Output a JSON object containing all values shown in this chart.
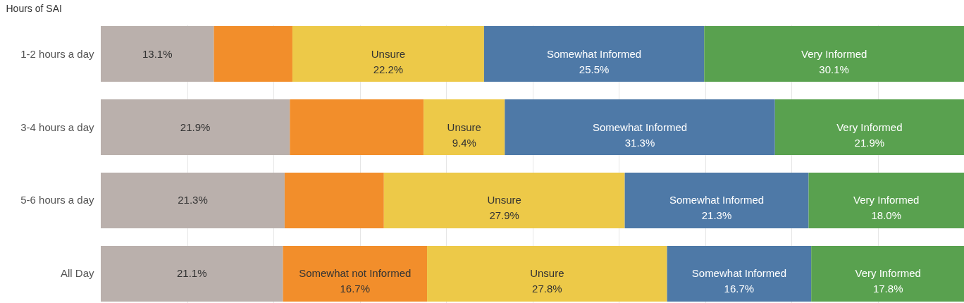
{
  "chart_data": {
    "type": "bar",
    "orientation": "horizontal",
    "stacked": true,
    "ylabel": "Hours of SAI",
    "categories": [
      "1-2 hours a day",
      "3-4 hours a day",
      "5-6 hours a day",
      "All Day"
    ],
    "series": [
      {
        "color": "#bab0ac",
        "values": [
          13.1,
          21.9,
          21.3,
          21.1
        ],
        "value_labels": [
          "13.1%",
          "21.9%",
          "21.3%",
          "21.1%"
        ]
      },
      {
        "name": "Somewhat not Informed",
        "color": "#f28e2b",
        "values": [
          9.1,
          15.5,
          11.5,
          16.7
        ],
        "value_labels": [
          null,
          null,
          null,
          "16.7%"
        ]
      },
      {
        "name": "Unsure",
        "color": "#edc948",
        "values": [
          22.2,
          9.4,
          27.9,
          27.8
        ],
        "value_labels": [
          "22.2%",
          "9.4%",
          "27.9%",
          "27.8%"
        ]
      },
      {
        "name": "Somewhat Informed",
        "color": "#4e79a7",
        "values": [
          25.5,
          31.3,
          21.3,
          16.7
        ],
        "value_labels": [
          "25.5%",
          "31.3%",
          "21.3%",
          "16.7%"
        ]
      },
      {
        "name": "Very Informed",
        "color": "#59a14f",
        "values": [
          30.1,
          21.9,
          18.0,
          17.8
        ],
        "value_labels": [
          "30.1%",
          "21.9%",
          "18.0%",
          "17.8%"
        ]
      }
    ],
    "xlim": [
      0,
      100
    ],
    "xticks": [
      {
        "value": 10,
        "label": null
      },
      {
        "value": 20,
        "label": null
      },
      {
        "value": 30,
        "label": null
      },
      {
        "value": 40,
        "label": null
      },
      {
        "value": 50,
        "label": null
      },
      {
        "value": 60,
        "label": null
      },
      {
        "value": 70,
        "label": null
      },
      {
        "value": 80,
        "label": null
      },
      {
        "value": 90,
        "label": null
      }
    ],
    "grid": "x",
    "tick_labels": "y"
  }
}
